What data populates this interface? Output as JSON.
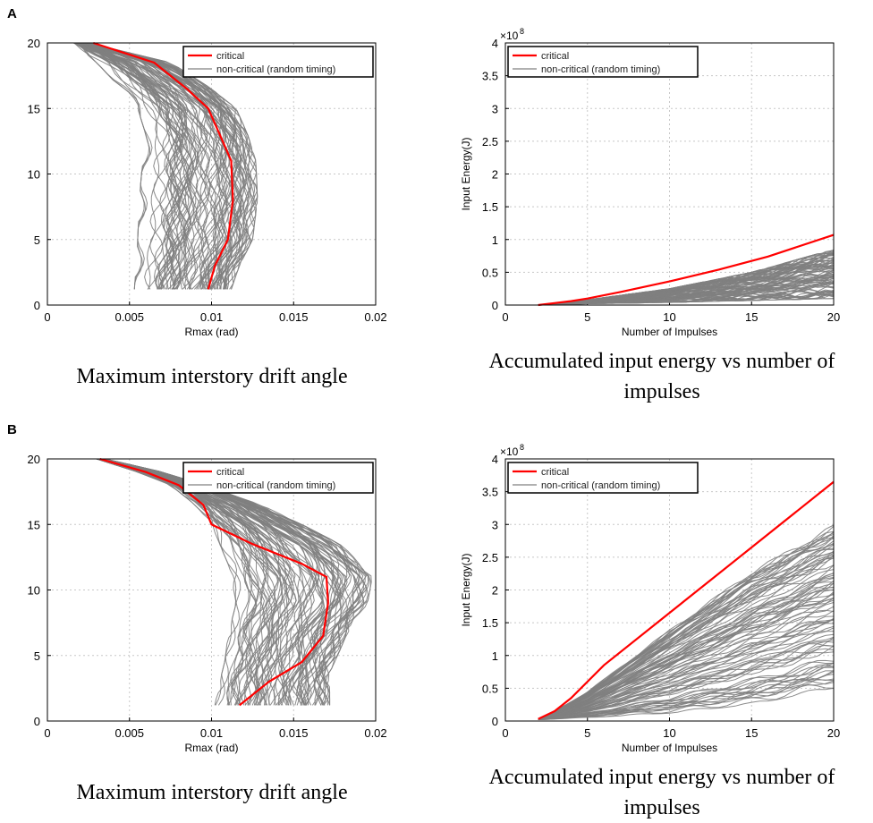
{
  "panels": [
    {
      "label": "A"
    },
    {
      "label": "B"
    }
  ],
  "legend": {
    "critical": "critical",
    "noncritical": "non-critical (random timing)"
  },
  "colors": {
    "critical": "#ff0000",
    "noncritical": "#808080"
  },
  "chart_data": [
    {
      "panel": "A",
      "type": "line",
      "caption": "Maximum interstory drift angle",
      "xlabel": "Rmax (rad)",
      "ylabel": "",
      "xlim": [
        0,
        0.02
      ],
      "ylim": [
        0,
        20
      ],
      "xticks": [
        "0",
        "0.005",
        "0.01",
        "0.015",
        "0.02"
      ],
      "yticks": [
        "0",
        "5",
        "10",
        "15",
        "20"
      ],
      "critical": {
        "x": [
          0.0028,
          0.0065,
          0.0085,
          0.0098,
          0.0105,
          0.0112,
          0.0113,
          0.011,
          0.0102,
          0.0098
        ],
        "y": [
          20,
          18.5,
          16.5,
          15,
          13,
          11,
          8,
          5,
          3,
          1.2
        ]
      },
      "noncritical_envelope": {
        "y": [
          20,
          18.5,
          16.5,
          15,
          13,
          11,
          8,
          5,
          3,
          1.2
        ],
        "xmin": [
          0.0016,
          0.003,
          0.0045,
          0.0055,
          0.006,
          0.0058,
          0.0056,
          0.0055,
          0.0054,
          0.0053
        ],
        "xmax": [
          0.0025,
          0.0075,
          0.01,
          0.0115,
          0.0122,
          0.0127,
          0.0128,
          0.0125,
          0.0117,
          0.0112
        ]
      }
    },
    {
      "panel": "A",
      "type": "line",
      "caption": "Accumulated input energy vs number of impulses",
      "xlabel": "Number of Impulses",
      "ylabel": "Input Energy(J)",
      "exponent": "×10",
      "exponent_power": "8",
      "xlim": [
        0,
        20
      ],
      "ylim": [
        0,
        4
      ],
      "xticks": [
        "0",
        "5",
        "10",
        "15",
        "20"
      ],
      "yticks": [
        "0",
        "0.5",
        "1",
        "1.5",
        "2",
        "2.5",
        "3",
        "3.5",
        "4"
      ],
      "critical": {
        "x": [
          2,
          3,
          4,
          5,
          7,
          10,
          13,
          16,
          20
        ],
        "y": [
          0,
          0.03,
          0.06,
          0.1,
          0.2,
          0.36,
          0.54,
          0.74,
          1.07
        ]
      },
      "noncritical_envelope": {
        "x": [
          2,
          5,
          10,
          15,
          20
        ],
        "ymin": [
          0,
          0.02,
          0.04,
          0.07,
          0.1
        ],
        "ymax": [
          0,
          0.08,
          0.25,
          0.5,
          0.85
        ]
      }
    },
    {
      "panel": "B",
      "type": "line",
      "caption": "Maximum interstory drift angle",
      "xlabel": "Rmax (rad)",
      "ylabel": "",
      "xlim": [
        0,
        0.02
      ],
      "ylim": [
        0,
        20
      ],
      "xticks": [
        "0",
        "0.005",
        "0.01",
        "0.015",
        "0.02"
      ],
      "yticks": [
        "0",
        "5",
        "10",
        "15",
        "20"
      ],
      "critical": {
        "x": [
          0.0032,
          0.006,
          0.008,
          0.0095,
          0.01,
          0.0125,
          0.0155,
          0.017,
          0.0171,
          0.0168,
          0.0155,
          0.0135,
          0.0117
        ],
        "y": [
          20,
          19,
          18,
          16.5,
          15,
          13.5,
          12,
          11,
          9,
          6.5,
          4.5,
          3,
          1.2
        ]
      },
      "noncritical_envelope": {
        "y": [
          20,
          19,
          18,
          16.5,
          15,
          13.5,
          12,
          11,
          9,
          6.5,
          4.5,
          3,
          1.2
        ],
        "xmin": [
          0.003,
          0.0055,
          0.0075,
          0.009,
          0.01,
          0.0105,
          0.011,
          0.0112,
          0.0115,
          0.011,
          0.0108,
          0.0105,
          0.0102
        ],
        "xmax": [
          0.0035,
          0.007,
          0.0095,
          0.013,
          0.0155,
          0.0178,
          0.0192,
          0.0198,
          0.0195,
          0.0182,
          0.0175,
          0.0172,
          0.0172
        ]
      }
    },
    {
      "panel": "B",
      "type": "line",
      "caption": "Accumulated input energy vs number of impulses",
      "xlabel": "Number of Impulses",
      "ylabel": "Input Energy(J)",
      "exponent": "×10",
      "exponent_power": "8",
      "xlim": [
        0,
        20
      ],
      "ylim": [
        0,
        4
      ],
      "xticks": [
        "0",
        "5",
        "10",
        "15",
        "20"
      ],
      "yticks": [
        "0",
        "0.5",
        "1",
        "1.5",
        "2",
        "2.5",
        "3",
        "3.5",
        "4"
      ],
      "critical": {
        "x": [
          2,
          3,
          4,
          6,
          10,
          15,
          20
        ],
        "y": [
          0.03,
          0.15,
          0.35,
          0.85,
          1.65,
          2.65,
          3.65
        ]
      },
      "noncritical_envelope": {
        "x": [
          2,
          3,
          5,
          10,
          15,
          20
        ],
        "ymin": [
          0.02,
          0.03,
          0.05,
          0.12,
          0.25,
          0.5
        ],
        "ymax": [
          0.03,
          0.15,
          0.45,
          1.4,
          2.3,
          3.0
        ]
      }
    }
  ]
}
